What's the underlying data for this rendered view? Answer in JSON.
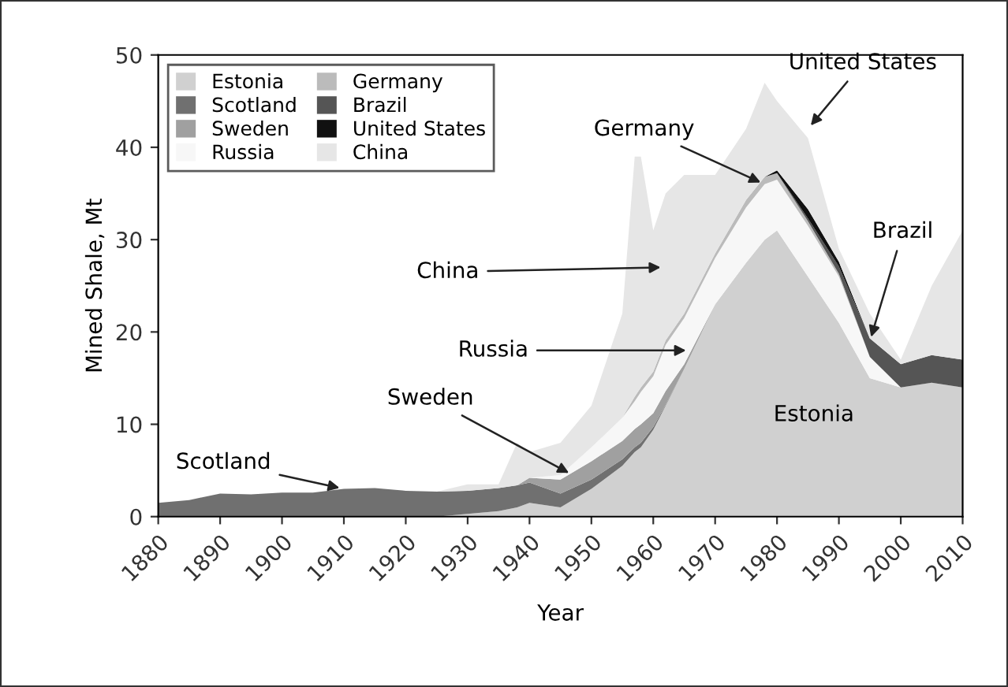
{
  "chart_data": {
    "type": "area",
    "stacked": true,
    "xlabel": "Year",
    "ylabel": "Mined Shale, Mt",
    "x": [
      1880,
      1885,
      1890,
      1895,
      1900,
      1905,
      1910,
      1915,
      1920,
      1925,
      1930,
      1935,
      1938,
      1940,
      1945,
      1950,
      1955,
      1957,
      1958,
      1960,
      1962,
      1965,
      1970,
      1975,
      1978,
      1980,
      1985,
      1990,
      1995,
      2000,
      2005,
      2010
    ],
    "series": [
      {
        "name": "Estonia",
        "color": "#d0d0d0",
        "values": [
          null,
          null,
          null,
          null,
          null,
          null,
          null,
          null,
          null,
          0,
          0.3,
          0.6,
          1,
          1.5,
          1,
          3,
          5.5,
          7,
          7.5,
          9.4,
          12,
          16,
          23,
          27.5,
          30,
          31,
          26,
          21,
          15,
          14,
          14.5,
          14
        ]
      },
      {
        "name": "Scotland",
        "color": "#707070",
        "values": [
          1.5,
          1.8,
          2.5,
          2.4,
          2.6,
          2.6,
          3,
          3.1,
          2.8,
          2.7,
          2.5,
          2.5,
          2.4,
          2.2,
          1.5,
          1,
          0.7,
          0.5,
          0.5,
          0.3,
          0.1,
          0,
          null,
          null,
          null,
          null,
          null,
          null,
          null,
          null,
          null,
          null
        ]
      },
      {
        "name": "Sweden",
        "color": "#a0a0a0",
        "values": [
          null,
          null,
          null,
          null,
          null,
          null,
          null,
          null,
          null,
          null,
          null,
          null,
          0,
          0.5,
          1.5,
          2,
          2,
          2,
          2,
          1.5,
          1.5,
          0.5,
          0,
          null,
          null,
          null,
          null,
          null,
          null,
          null,
          null,
          null
        ]
      },
      {
        "name": "Russia",
        "color": "#f7f7f7",
        "values": [
          null,
          null,
          null,
          null,
          null,
          null,
          null,
          null,
          null,
          null,
          null,
          null,
          null,
          0,
          0.5,
          1.5,
          2.5,
          3,
          3.5,
          4,
          5,
          5,
          5,
          6,
          6,
          5.5,
          5.5,
          5,
          2.3,
          0,
          null,
          null
        ]
      },
      {
        "name": "Germany",
        "color": "#bbbbbb",
        "values": [
          null,
          null,
          null,
          null,
          null,
          null,
          null,
          null,
          null,
          null,
          null,
          null,
          null,
          null,
          null,
          null,
          0,
          0.5,
          0.5,
          0.5,
          0.5,
          0.5,
          0.5,
          0.8,
          0.8,
          0.7,
          0.5,
          0.3,
          0,
          null,
          null,
          null
        ]
      },
      {
        "name": "Brazil",
        "color": "#555555",
        "values": [
          null,
          null,
          null,
          null,
          null,
          null,
          null,
          null,
          null,
          null,
          null,
          null,
          null,
          null,
          null,
          null,
          null,
          null,
          null,
          null,
          null,
          null,
          null,
          null,
          null,
          0,
          0.3,
          0.8,
          2,
          2.5,
          3,
          3
        ]
      },
      {
        "name": "United States",
        "color": "#111111",
        "values": [
          null,
          null,
          null,
          null,
          null,
          null,
          null,
          null,
          null,
          null,
          null,
          null,
          null,
          null,
          null,
          null,
          null,
          null,
          null,
          null,
          null,
          null,
          null,
          null,
          0,
          0.3,
          1,
          0.5,
          0,
          null,
          null,
          null
        ]
      },
      {
        "name": "China",
        "color": "#e6e6e6",
        "values": [
          null,
          null,
          null,
          null,
          null,
          null,
          null,
          null,
          null,
          0,
          0.7,
          0.4,
          4.6,
          2.8,
          3.5,
          4.5,
          11.3,
          26,
          25,
          15.3,
          15.9,
          15,
          8.5,
          7.7,
          10.2,
          7.5,
          7.7,
          1.4,
          2.7,
          0.5,
          7.5,
          14
        ]
      }
    ],
    "annotations": [
      {
        "text": "Scotland",
        "x": 1910,
        "y": 3
      },
      {
        "text": "Sweden",
        "x": 1947,
        "y": 4.5
      },
      {
        "text": "Russia",
        "x": 1966,
        "y": 18
      },
      "China",
      {
        "text": "Germany",
        "x": 1978,
        "y": 36
      },
      {
        "text": "United States",
        "x": 1985,
        "y": 42
      },
      {
        "text": "Brazil",
        "x": 1995,
        "y": 19
      },
      "Estonia"
    ],
    "xlim": [
      1880,
      2010
    ],
    "ylim": [
      0,
      50
    ],
    "xticks": [
      1880,
      1890,
      1900,
      1910,
      1920,
      1930,
      1940,
      1950,
      1960,
      1970,
      1980,
      1990,
      2000,
      2010
    ],
    "yticks": [
      0,
      10,
      20,
      30,
      40,
      50
    ],
    "grid": false,
    "legend": "top left"
  }
}
